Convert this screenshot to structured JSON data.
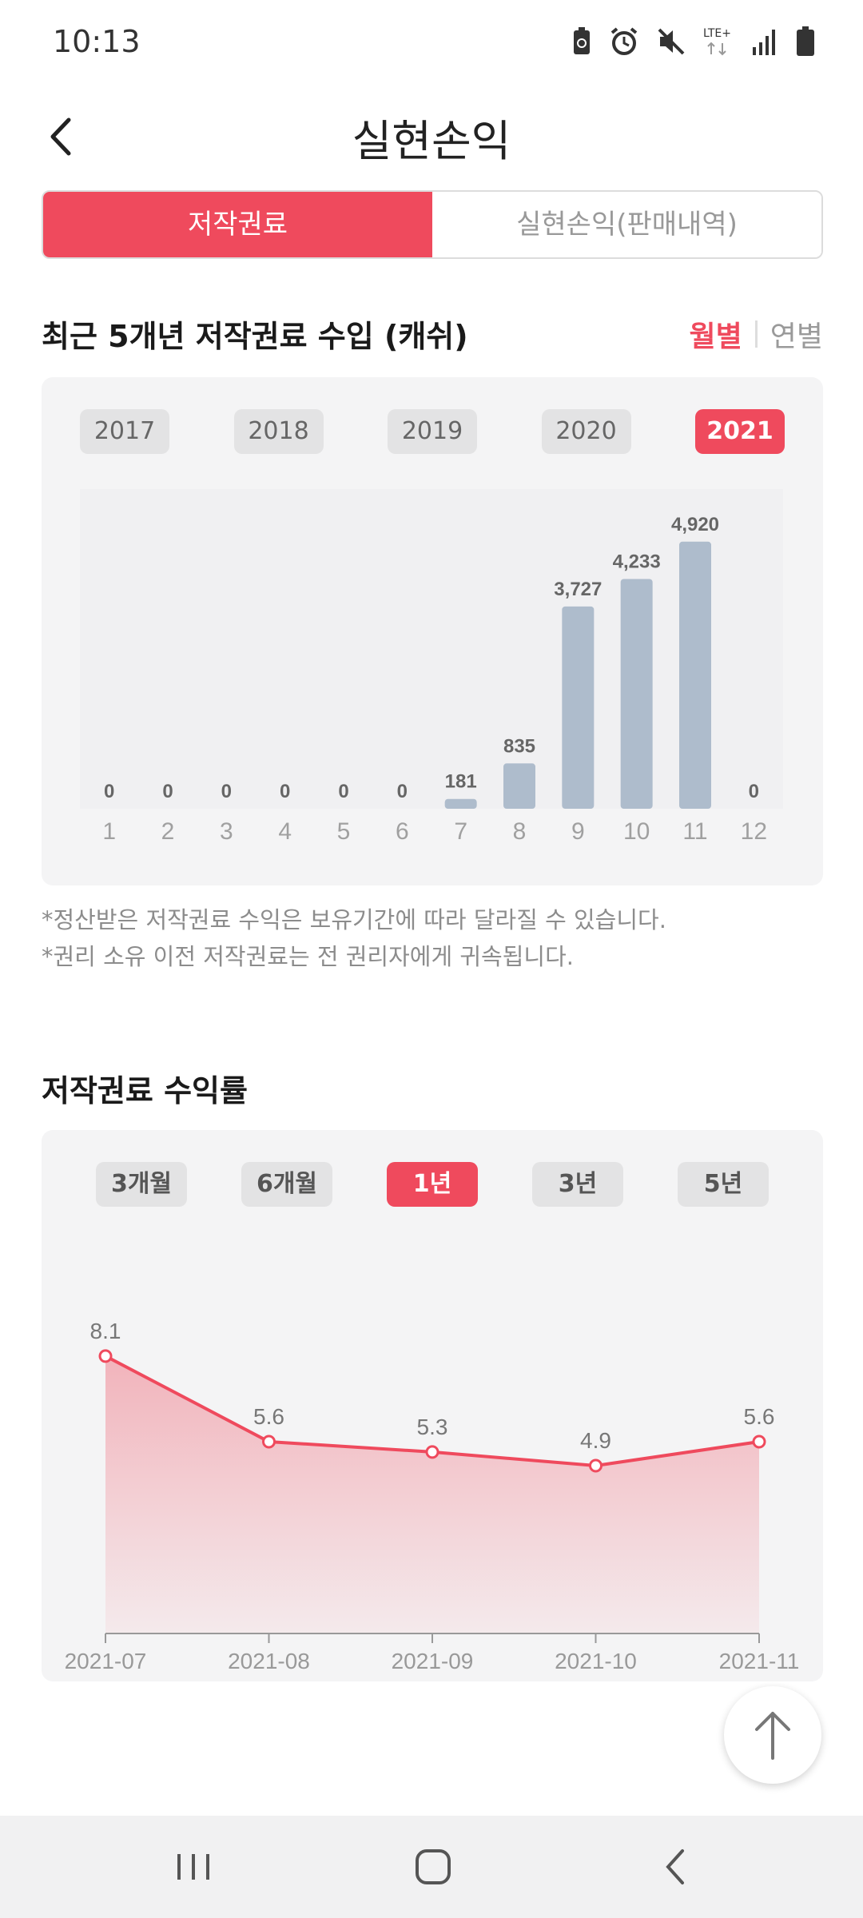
{
  "status_bar": {
    "time": "10:13",
    "network": "LTE+",
    "icons": [
      "battery-saver-icon",
      "alarm-icon",
      "mute-icon",
      "lte-icon",
      "signal-icon",
      "battery-icon"
    ]
  },
  "app_bar": {
    "title": "실현손익",
    "back_icon": "chevron-left-icon"
  },
  "segment": {
    "tabs": [
      "저작권료",
      "실현손익(판매내역)"
    ],
    "active_index": 0
  },
  "royalty_section": {
    "title": "최근 5개년 저작권료 수입 (캐쉬)",
    "toggle_monthly": "월별",
    "toggle_yearly": "연별",
    "years": [
      "2017",
      "2018",
      "2019",
      "2020",
      "2021"
    ],
    "active_year": "2021",
    "notes": [
      "*정산받은 저작권료 수익은 보유기간에 따라 달라질 수 있습니다.",
      "*권리 소유 이전 저작권료는 전 권리자에게 귀속됩니다."
    ]
  },
  "yield_section": {
    "title": "저작권료 수익률",
    "periods": [
      "3개월",
      "6개월",
      "1년",
      "3년",
      "5년"
    ],
    "active_period": "1년"
  },
  "colors": {
    "accent": "#ef4a5d",
    "bar": "#aebccc",
    "card_bg": "#f4f4f5"
  },
  "chart_data": [
    {
      "type": "bar",
      "categories": [
        "1",
        "2",
        "3",
        "4",
        "5",
        "6",
        "7",
        "8",
        "9",
        "10",
        "11",
        "12"
      ],
      "values": [
        0,
        0,
        0,
        0,
        0,
        0,
        181,
        835,
        3727,
        4233,
        4920,
        0
      ],
      "value_labels": [
        "0",
        "0",
        "0",
        "0",
        "0",
        "0",
        "181",
        "835",
        "3,727",
        "4,233",
        "4,920",
        "0"
      ],
      "ylim": [
        0,
        5300
      ],
      "grid": false
    },
    {
      "type": "area",
      "categories": [
        "2021-07",
        "2021-08",
        "2021-09",
        "2021-10",
        "2021-11"
      ],
      "values": [
        8.1,
        5.6,
        5.3,
        4.9,
        5.6
      ],
      "value_labels": [
        "8.1",
        "5.6",
        "5.3",
        "4.9",
        "5.6"
      ],
      "ylim": [
        0,
        9.8
      ],
      "grid": false
    }
  ],
  "fab": {
    "icon": "arrow-up-icon"
  },
  "nav_bar": {
    "icons": [
      "recent-apps-icon",
      "home-icon",
      "back-icon"
    ]
  }
}
